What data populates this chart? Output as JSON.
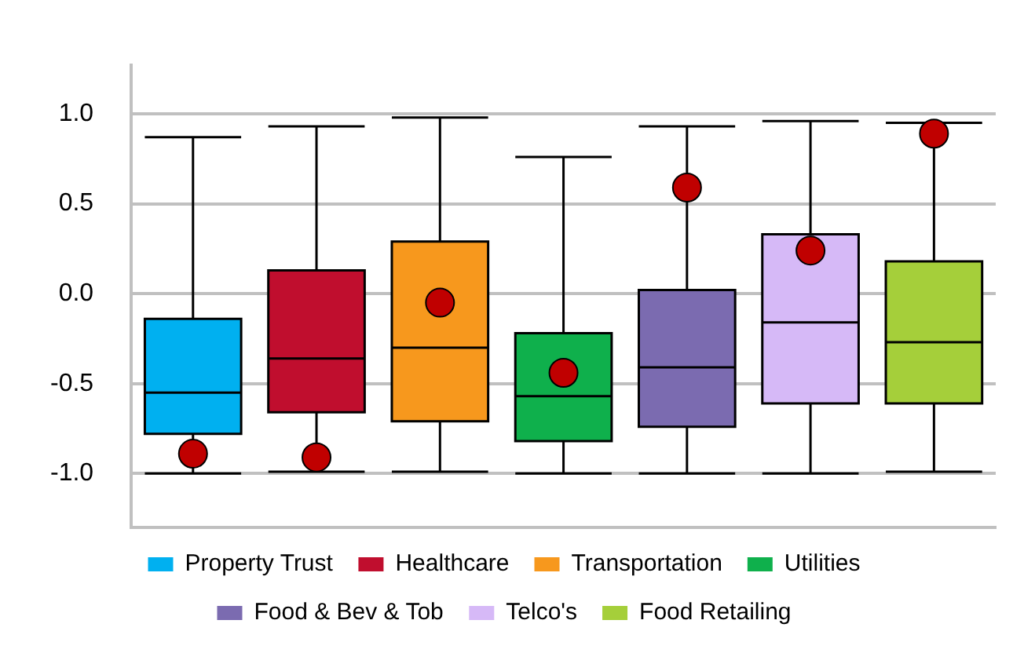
{
  "chart_data": {
    "type": "box",
    "categories": [
      null,
      null,
      null,
      null,
      null,
      null,
      null
    ],
    "series": [
      {
        "name": "Property Trust",
        "color": "#00b0f0",
        "boxes": [
          {
            "low": -1.0,
            "q1": -0.78,
            "median": -0.55,
            "q3": -0.14,
            "high": 0.87
          },
          null,
          null,
          null,
          null,
          null,
          null
        ]
      },
      {
        "name": "Healthcare",
        "color": "#c00e2e",
        "boxes": [
          null,
          {
            "low": -0.99,
            "q1": -0.66,
            "median": -0.36,
            "q3": 0.13,
            "high": 0.93
          },
          null,
          null,
          null,
          null,
          null
        ]
      },
      {
        "name": "Transportation",
        "color": "#f7981d",
        "boxes": [
          null,
          null,
          {
            "low": -0.99,
            "q1": -0.71,
            "median": -0.3,
            "q3": 0.29,
            "high": 0.98
          },
          null,
          null,
          null,
          null
        ]
      },
      {
        "name": "Utilities",
        "color": "#0fb04c",
        "boxes": [
          null,
          null,
          null,
          {
            "low": -1.0,
            "q1": -0.82,
            "median": -0.57,
            "q3": -0.22,
            "high": 0.76
          },
          null,
          null,
          null
        ]
      },
      {
        "name": "Food & Bev & Tob",
        "color": "#7b6bb0",
        "boxes": [
          null,
          null,
          null,
          null,
          {
            "low": -1.0,
            "q1": -0.74,
            "median": -0.41,
            "q3": 0.02,
            "high": 0.93
          },
          null,
          null
        ]
      },
      {
        "name": "Telco's",
        "color": "#d6b9f7",
        "boxes": [
          null,
          null,
          null,
          null,
          null,
          {
            "low": -1.0,
            "q1": -0.61,
            "median": -0.16,
            "q3": 0.33,
            "high": 0.96
          },
          null
        ]
      },
      {
        "name": "Food Retailing",
        "color": "#a5cf3a",
        "boxes": [
          null,
          null,
          null,
          null,
          null,
          null,
          {
            "low": -0.99,
            "q1": -0.61,
            "median": -0.27,
            "q3": 0.18,
            "high": 0.95
          }
        ]
      },
      {
        "type": "scatter",
        "color": "#c00000",
        "values": [
          -0.89,
          -0.91,
          -0.05,
          -0.44,
          0.59,
          0.24,
          0.89
        ]
      }
    ],
    "ylim": [
      -1.3,
      1.27
    ],
    "yticks": [
      {
        "value": -1,
        "label": "-1.0"
      },
      {
        "value": -0.5,
        "label": "-0.5"
      },
      {
        "value": 0,
        "label": "0.0"
      },
      {
        "value": 0.5,
        "label": "0.5"
      },
      {
        "value": 1,
        "label": "1.0"
      }
    ],
    "grid": "y",
    "legend": "bottom",
    "tick_labels": "y",
    "marker": "circle"
  }
}
